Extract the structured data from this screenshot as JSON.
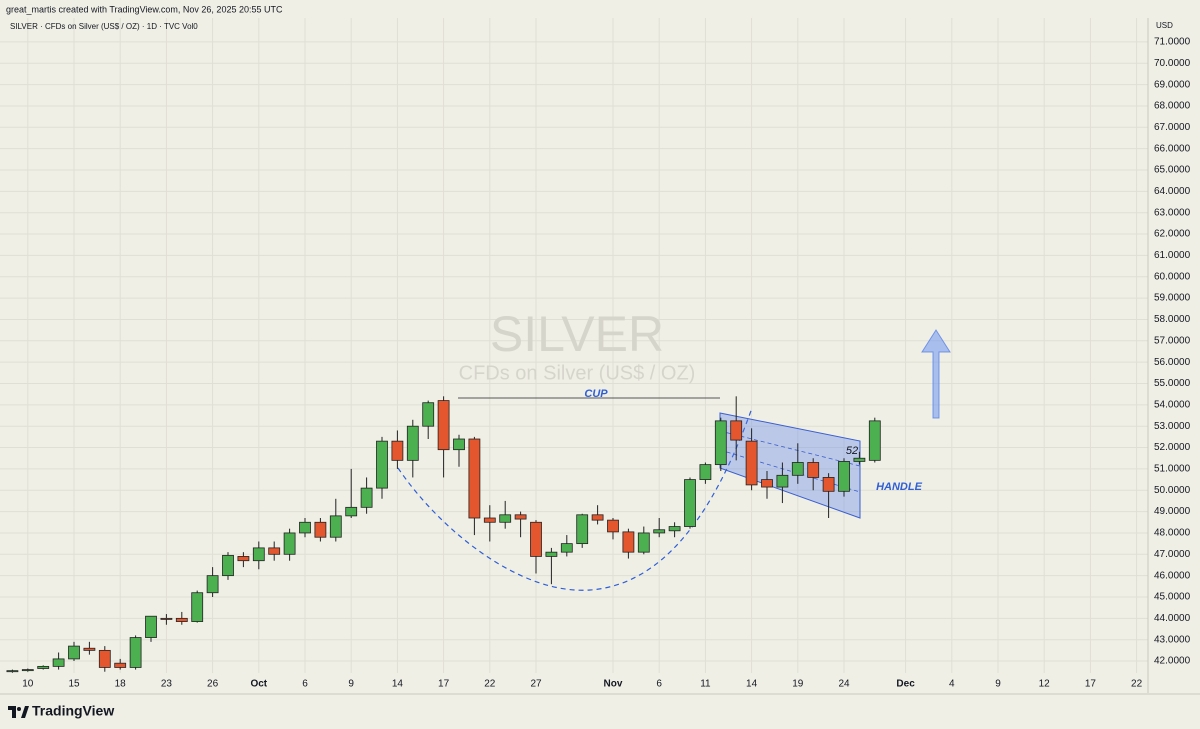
{
  "chart_data": {
    "type": "candlestick",
    "header": "great_martis created with TradingView.com, Nov 26, 2025 20:55 UTC",
    "legend": "SILVER · CFDs on Silver (US$ / OZ) · 1D · TVC  Vol0",
    "currency": "USD",
    "watermark_title": "SILVER",
    "watermark_subtitle": "CFDs on Silver (US$ / OZ)",
    "annotations": [
      "CUP",
      "HANDLE",
      "52"
    ],
    "brand": "TradingView",
    "up_color": "#4caf50",
    "down_color": "#e4572e",
    "grid": true,
    "categories": [
      null,
      "10",
      null,
      null,
      "15",
      null,
      null,
      "18",
      null,
      null,
      "23",
      null,
      null,
      "26",
      null,
      null,
      "Oct",
      null,
      null,
      "6",
      null,
      null,
      "9",
      null,
      null,
      "14",
      null,
      null,
      "17",
      null,
      null,
      "22",
      null,
      null,
      "27",
      null,
      null,
      null,
      null,
      "Nov",
      null,
      null,
      "6",
      null,
      null,
      "11",
      null,
      null,
      "14",
      null,
      null,
      "19",
      null,
      null,
      "24",
      null,
      null,
      null,
      "Dec",
      null,
      null,
      "4",
      null,
      null,
      "9",
      null,
      null,
      "12",
      null,
      null,
      "17",
      null,
      null,
      "22"
    ],
    "open": [
      41.5,
      41.55,
      41.65,
      41.75,
      42.1,
      42.6,
      42.5,
      41.9,
      41.7,
      43.1,
      44.0,
      44.0,
      43.85,
      45.2,
      46.0,
      46.9,
      46.7,
      47.3,
      47.0,
      48.0,
      48.5,
      47.8,
      48.8,
      49.2,
      50.1,
      52.3,
      51.4,
      53.0,
      54.2,
      51.9,
      52.4,
      48.7,
      48.5,
      48.85,
      48.5,
      46.9,
      47.1,
      47.5,
      48.85,
      48.6,
      48.05,
      47.1,
      48.0,
      48.1,
      48.3,
      50.5,
      51.2,
      53.25,
      52.3,
      50.5,
      50.15,
      50.7,
      51.3,
      50.6,
      49.95,
      51.35,
      51.4,
      null,
      null,
      null,
      null,
      null,
      null,
      null,
      null,
      null,
      null,
      null,
      null,
      null,
      null,
      null,
      null,
      null
    ],
    "high": [
      41.6,
      41.65,
      41.8,
      42.4,
      42.9,
      42.9,
      42.7,
      42.1,
      43.2,
      44.1,
      44.2,
      44.3,
      45.3,
      46.4,
      47.1,
      47.1,
      47.6,
      47.6,
      48.2,
      48.7,
      48.7,
      49.6,
      51.0,
      50.6,
      52.5,
      52.8,
      53.3,
      54.2,
      54.4,
      52.6,
      52.5,
      49.3,
      49.5,
      49.0,
      48.6,
      47.3,
      47.9,
      48.9,
      49.3,
      48.7,
      48.2,
      48.3,
      48.7,
      48.5,
      50.6,
      51.3,
      53.4,
      54.4,
      52.9,
      50.9,
      51.3,
      52.2,
      51.5,
      50.8,
      51.5,
      51.8,
      53.4,
      null,
      null,
      null,
      null,
      null,
      null,
      null,
      null,
      null,
      null,
      null,
      null,
      null,
      null,
      null,
      null,
      null
    ],
    "low": [
      41.45,
      41.5,
      41.6,
      41.6,
      42.0,
      42.3,
      41.5,
      41.6,
      41.6,
      42.9,
      43.7,
      43.7,
      43.8,
      45.0,
      45.8,
      46.4,
      46.3,
      46.7,
      46.7,
      47.8,
      47.6,
      47.6,
      48.7,
      48.9,
      49.6,
      51.0,
      50.6,
      52.4,
      50.6,
      51.1,
      47.9,
      47.6,
      48.2,
      47.8,
      46.1,
      45.6,
      46.9,
      47.3,
      48.4,
      47.7,
      46.8,
      47.0,
      47.8,
      47.8,
      48.2,
      50.3,
      50.9,
      51.4,
      50.0,
      49.6,
      49.4,
      50.3,
      50.0,
      48.7,
      49.7,
      51.2,
      51.3,
      null,
      null,
      null,
      null,
      null,
      null,
      null,
      null,
      null,
      null,
      null,
      null,
      null,
      null,
      null,
      null,
      null
    ],
    "close": [
      41.55,
      41.6,
      41.75,
      42.1,
      42.7,
      42.5,
      41.7,
      41.7,
      43.1,
      44.1,
      43.95,
      43.85,
      45.2,
      46.0,
      46.95,
      46.7,
      47.3,
      47.0,
      48.0,
      48.5,
      47.8,
      48.8,
      49.2,
      50.1,
      52.3,
      51.4,
      53.0,
      54.1,
      51.9,
      52.4,
      48.7,
      48.5,
      48.85,
      48.65,
      46.9,
      47.1,
      47.5,
      48.85,
      48.6,
      48.05,
      47.1,
      48.0,
      48.15,
      48.3,
      50.5,
      51.2,
      53.25,
      52.35,
      50.25,
      50.15,
      50.7,
      51.3,
      50.6,
      49.95,
      51.35,
      51.5,
      53.25,
      null,
      null,
      null,
      null,
      null,
      null,
      null,
      null,
      null,
      null,
      null,
      null,
      null,
      null,
      null,
      null,
      null
    ],
    "ylim": [
      41.44,
      72.12
    ],
    "yticks": [
      {
        "value": 42,
        "label": "42.0000"
      },
      {
        "value": 43,
        "label": "43.0000"
      },
      {
        "value": 44,
        "label": "44.0000"
      },
      {
        "value": 45,
        "label": "45.0000"
      },
      {
        "value": 46,
        "label": "46.0000"
      },
      {
        "value": 47,
        "label": "47.0000"
      },
      {
        "value": 48,
        "label": "48.0000"
      },
      {
        "value": 49,
        "label": "49.0000"
      },
      {
        "value": 50,
        "label": "50.0000"
      },
      {
        "value": 51,
        "label": "51.0000"
      },
      {
        "value": 52,
        "label": "52.0000"
      },
      {
        "value": 53,
        "label": "53.0000"
      },
      {
        "value": 54,
        "label": "54.0000"
      },
      {
        "value": 55,
        "label": "55.0000"
      },
      {
        "value": 56,
        "label": "56.0000"
      },
      {
        "value": 57,
        "label": "57.0000"
      },
      {
        "value": 58,
        "label": "58.0000"
      },
      {
        "value": 59,
        "label": "59.0000"
      },
      {
        "value": 60,
        "label": "60.0000"
      },
      {
        "value": 61,
        "label": "61.0000"
      },
      {
        "value": 62,
        "label": "62.0000"
      },
      {
        "value": 63,
        "label": "63.0000"
      },
      {
        "value": 64,
        "label": "64.0000"
      },
      {
        "value": 65,
        "label": "65.0000"
      },
      {
        "value": 66,
        "label": "66.0000"
      },
      {
        "value": 67,
        "label": "67.0000"
      },
      {
        "value": 68,
        "label": "68.0000"
      },
      {
        "value": 69,
        "label": "69.0000"
      },
      {
        "value": 70,
        "label": "70.0000"
      },
      {
        "value": 71,
        "label": "71.0000"
      }
    ]
  }
}
